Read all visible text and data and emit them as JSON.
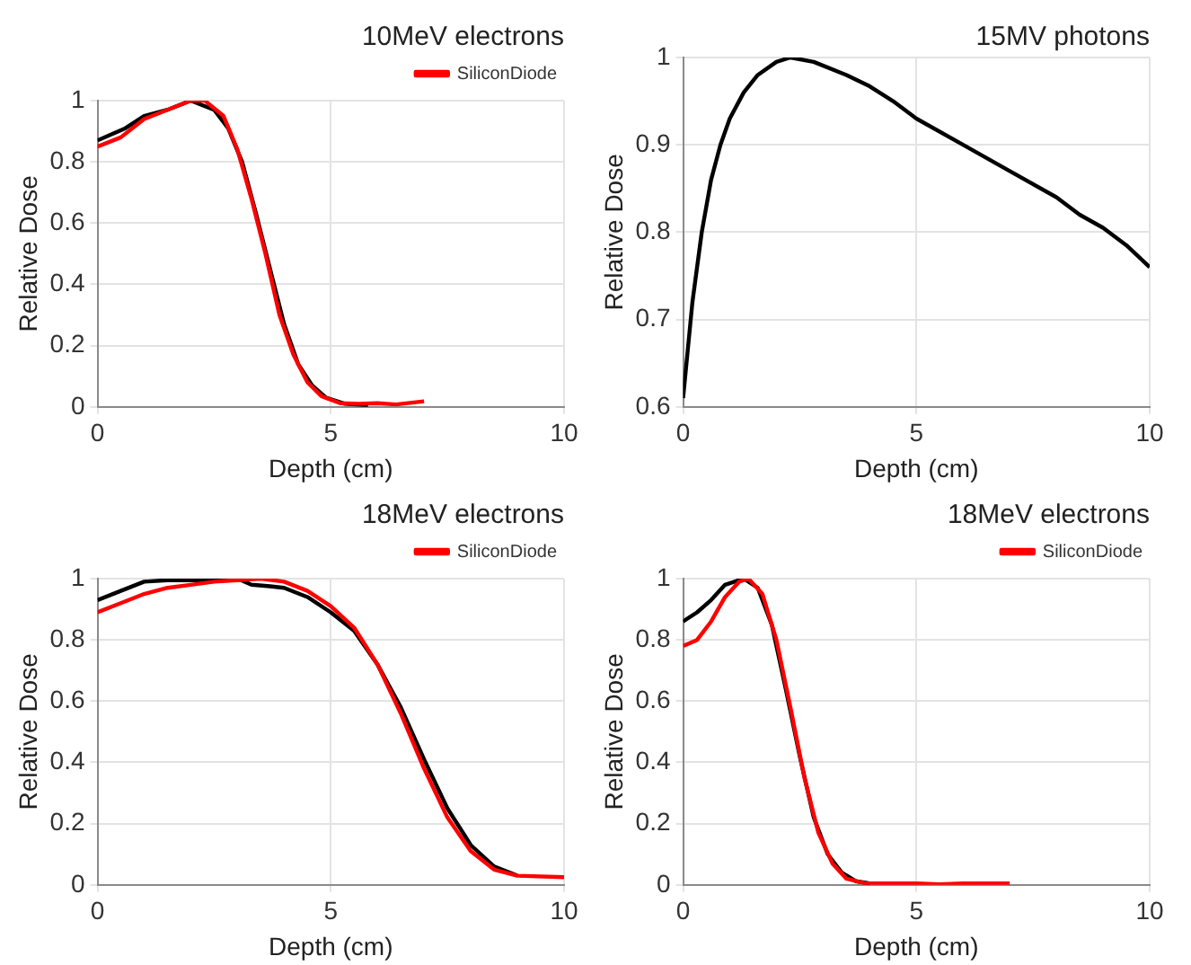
{
  "chart_data": [
    {
      "type": "line",
      "title": "10MeV electrons",
      "xlabel": "Depth (cm)",
      "ylabel": "Relative Dose",
      "xlim": [
        0,
        10
      ],
      "xticks": [
        0,
        5,
        10
      ],
      "ylim": [
        0,
        1
      ],
      "yticks": [
        0,
        0.2,
        0.4,
        0.6,
        0.8,
        1
      ],
      "grid": true,
      "legend": "top right",
      "series": [
        {
          "name": "SiliconDiode",
          "color": "#ff0000",
          "x": [
            0,
            0.5,
            1,
            1.5,
            2,
            2.3,
            2.7,
            3,
            3.3,
            3.6,
            3.9,
            4.2,
            4.5,
            4.8,
            5.2,
            5.6,
            6,
            6.4,
            7
          ],
          "values": [
            0.85,
            0.88,
            0.94,
            0.97,
            1.0,
            1.0,
            0.95,
            0.84,
            0.68,
            0.5,
            0.3,
            0.17,
            0.08,
            0.035,
            0.012,
            0.01,
            0.012,
            0.008,
            0.018
          ]
        },
        {
          "color": "#000000",
          "x": [
            0,
            0.3,
            0.6,
            1,
            1.5,
            2,
            2.5,
            2.8,
            3.1,
            3.4,
            3.7,
            4,
            4.3,
            4.6,
            4.9,
            5.3,
            5.8
          ],
          "values": [
            0.87,
            0.89,
            0.91,
            0.95,
            0.97,
            1.0,
            0.97,
            0.91,
            0.8,
            0.63,
            0.45,
            0.27,
            0.14,
            0.07,
            0.03,
            0.01,
            0.005
          ]
        }
      ]
    },
    {
      "type": "line",
      "title": "15MV photons",
      "xlabel": "Depth (cm)",
      "ylabel": "Relative Dose",
      "xlim": [
        0,
        10
      ],
      "xticks": [
        0,
        5,
        10
      ],
      "ylim": [
        0.6,
        1
      ],
      "yticks": [
        0.6,
        0.7,
        0.8,
        0.9,
        1
      ],
      "grid": true,
      "series": [
        {
          "color": "#000000",
          "x": [
            0,
            0.2,
            0.4,
            0.6,
            0.8,
            1,
            1.3,
            1.6,
            2,
            2.3,
            2.8,
            3.5,
            4,
            4.5,
            5,
            6,
            7,
            8,
            8.5,
            9,
            9.5,
            10
          ],
          "values": [
            0.61,
            0.72,
            0.8,
            0.86,
            0.9,
            0.93,
            0.96,
            0.98,
            0.995,
            1.0,
            0.995,
            0.98,
            0.967,
            0.95,
            0.93,
            0.9,
            0.87,
            0.84,
            0.82,
            0.805,
            0.785,
            0.76
          ]
        }
      ]
    },
    {
      "type": "line",
      "title": "18MeV electrons",
      "xlabel": "Depth (cm)",
      "ylabel": "Relative Dose",
      "xlim": [
        0,
        10
      ],
      "xticks": [
        0,
        5,
        10
      ],
      "ylim": [
        0,
        1
      ],
      "yticks": [
        0,
        0.2,
        0.4,
        0.6,
        0.8,
        1
      ],
      "grid": true,
      "legend": "top right",
      "series": [
        {
          "name": "SiliconDiode",
          "color": "#ff0000",
          "x": [
            0,
            0.5,
            1,
            1.5,
            2,
            2.5,
            3,
            3.5,
            4,
            4.5,
            5,
            5.5,
            6,
            6.5,
            7,
            7.5,
            8,
            8.5,
            9,
            10
          ],
          "values": [
            0.89,
            0.92,
            0.95,
            0.97,
            0.98,
            0.99,
            0.995,
            1.0,
            0.99,
            0.96,
            0.91,
            0.84,
            0.72,
            0.56,
            0.38,
            0.22,
            0.11,
            0.05,
            0.03,
            0.025
          ]
        },
        {
          "color": "#000000",
          "x": [
            0,
            0.5,
            1,
            1.5,
            2,
            2.5,
            3,
            3.3,
            3.7,
            4,
            4.5,
            5,
            5.5,
            6,
            6.5,
            7,
            7.5,
            8,
            8.5,
            9
          ],
          "values": [
            0.93,
            0.96,
            0.99,
            0.995,
            0.995,
            0.995,
            1.0,
            0.98,
            0.975,
            0.97,
            0.94,
            0.89,
            0.83,
            0.72,
            0.58,
            0.41,
            0.25,
            0.13,
            0.06,
            0.03
          ]
        }
      ]
    },
    {
      "type": "line",
      "title": "18MeV electrons",
      "xlabel": "Depth (cm)",
      "ylabel": "Relative Dose",
      "xlim": [
        0,
        10
      ],
      "xticks": [
        0,
        5,
        10
      ],
      "ylim": [
        0,
        1
      ],
      "yticks": [
        0,
        0.2,
        0.4,
        0.6,
        0.8,
        1
      ],
      "grid": true,
      "legend": "top right",
      "series": [
        {
          "name": "SiliconDiode",
          "color": "#ff0000",
          "x": [
            0,
            0.3,
            0.6,
            0.9,
            1.2,
            1.4,
            1.7,
            2,
            2.3,
            2.6,
            2.9,
            3.2,
            3.5,
            3.9,
            5,
            5.5,
            6,
            7
          ],
          "values": [
            0.78,
            0.8,
            0.86,
            0.94,
            0.99,
            1.0,
            0.95,
            0.8,
            0.58,
            0.35,
            0.17,
            0.07,
            0.02,
            0.005,
            0.005,
            0.002,
            0.005,
            0.005
          ]
        },
        {
          "color": "#000000",
          "x": [
            0,
            0.3,
            0.6,
            0.9,
            1.3,
            1.6,
            1.9,
            2.2,
            2.5,
            2.8,
            3.1,
            3.4,
            3.7,
            4
          ],
          "values": [
            0.86,
            0.89,
            0.93,
            0.98,
            1.0,
            0.97,
            0.85,
            0.64,
            0.42,
            0.22,
            0.1,
            0.04,
            0.012,
            0.005
          ]
        }
      ]
    }
  ]
}
